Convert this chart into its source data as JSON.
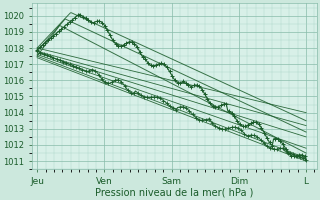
{
  "title": "",
  "xlabel": "Pression niveau de la mer( hPa )",
  "ylabel": "",
  "bg_color": "#cce8dd",
  "plot_bg_color": "#d8f0e8",
  "grid_major_color": "#88bbaa",
  "grid_minor_color": "#aad4c8",
  "line_color": "#1a5c2a",
  "ylim": [
    1010.5,
    1020.8
  ],
  "yticks": [
    1011,
    1012,
    1013,
    1014,
    1015,
    1016,
    1017,
    1018,
    1019,
    1020
  ],
  "xtick_labels": [
    "Jeu",
    "Ven",
    "Sam",
    "Dim",
    "L"
  ],
  "xtick_positions": [
    0,
    24,
    48,
    72,
    96
  ],
  "xlim": [
    -2,
    100
  ]
}
